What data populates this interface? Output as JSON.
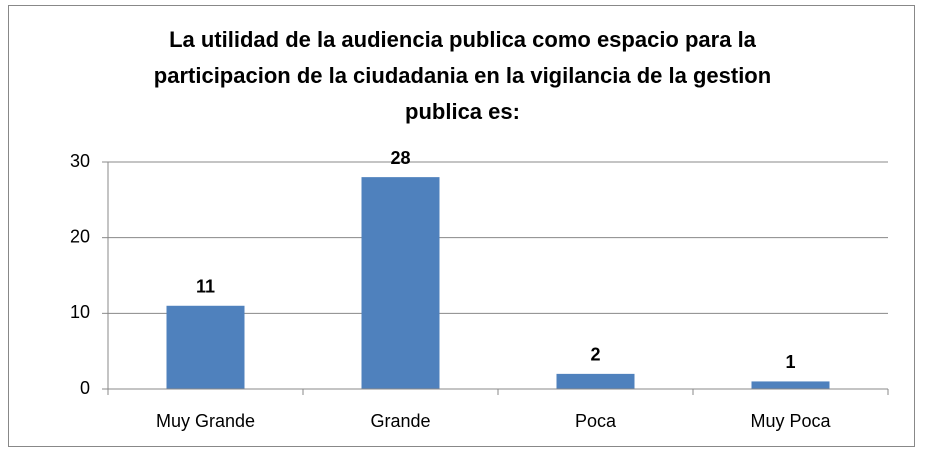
{
  "chart_data": {
    "type": "bar",
    "title": "La utilidad de la audiencia publica como espacio para la participacion de la ciudadania en la vigilancia de la gestion publica es:",
    "categories": [
      "Muy Grande",
      "Grande",
      "Poca",
      "Muy Poca"
    ],
    "values": [
      11,
      28,
      2,
      1
    ],
    "color": "#4f81bd",
    "ylim": [
      0,
      30
    ],
    "yticks": [
      0,
      10,
      20,
      30
    ],
    "grid": true
  }
}
